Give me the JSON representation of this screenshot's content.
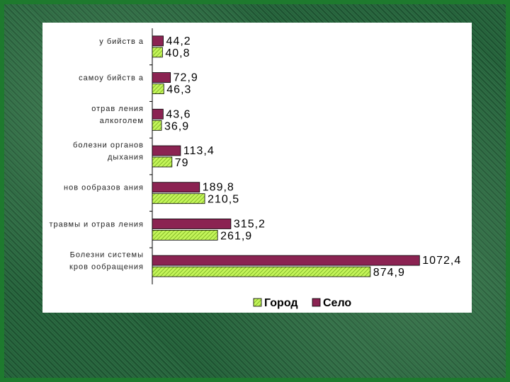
{
  "chart_data": {
    "type": "bar",
    "orientation": "horizontal",
    "categories": [
      [
        "у бийств а"
      ],
      [
        "самоу бийств а"
      ],
      [
        "отрав ления",
        "алкоголем"
      ],
      [
        "болезни органов",
        "дыхания"
      ],
      [
        "нов ообразов ания"
      ],
      [
        "травмы и отрав ления"
      ],
      [
        "Болезни системы",
        "кров ообращения"
      ]
    ],
    "series": [
      {
        "name": "Село",
        "values": [
          44.2,
          72.9,
          43.6,
          113.4,
          189.8,
          315.2,
          1072.4
        ],
        "labels": [
          "44,2",
          "72,9",
          "43,6",
          "113,4",
          "189,8",
          "315,2",
          "1072,4"
        ],
        "color": "#8b2352"
      },
      {
        "name": "Город",
        "values": [
          40.8,
          46.3,
          36.9,
          79,
          210.5,
          261.9,
          874.9
        ],
        "labels": [
          "40,8",
          "46,3",
          "36,9",
          "79",
          "210,5",
          "261,9",
          "874,9"
        ],
        "color": "#b6f23a"
      }
    ],
    "legend_order": [
      "Город",
      "Село"
    ],
    "xlim": [
      0,
      1100
    ],
    "legend_position": "bottom",
    "grid": false
  }
}
